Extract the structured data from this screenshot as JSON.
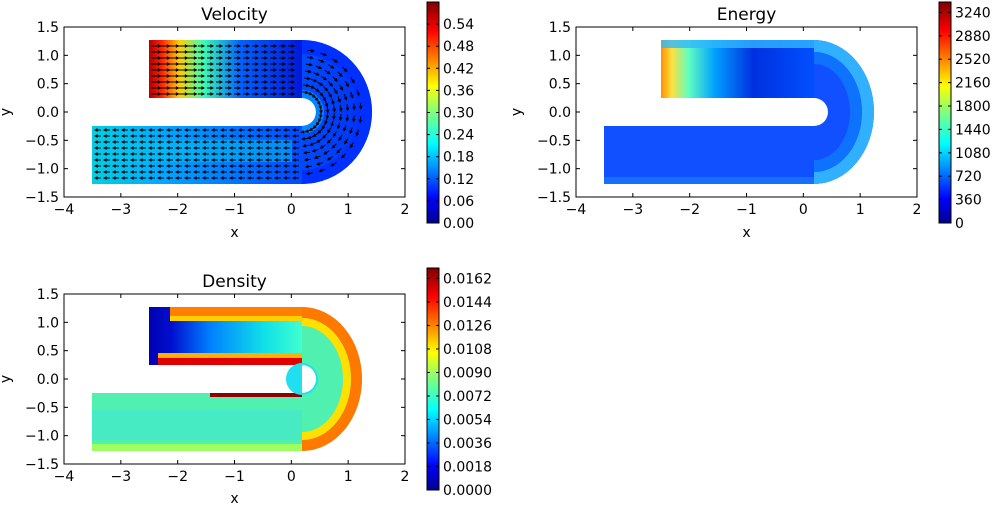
{
  "chart_data": [
    {
      "type": "heatmap",
      "title": "Velocity",
      "xlabel": "x",
      "ylabel": "y",
      "xlim": [
        -4,
        2
      ],
      "ylim": [
        -1.5,
        1.5
      ],
      "xticks": [
        "−4",
        "−3",
        "−2",
        "−1",
        "0",
        "1",
        "2"
      ],
      "yticks": [
        "1.5",
        "1.0",
        "0.5",
        "0.0",
        "−0.5",
        "−1.0",
        "−1.5"
      ],
      "colorbar": {
        "min": 0,
        "max": 0.6,
        "ticks": [
          "0.54",
          "0.48",
          "0.42",
          "0.36",
          "0.30",
          "0.24",
          "0.18",
          "0.12",
          "0.06",
          "0.00"
        ]
      },
      "quiver": true
    },
    {
      "type": "heatmap",
      "title": "Energy",
      "xlabel": "x",
      "ylabel": "y",
      "xlim": [
        -4,
        2
      ],
      "ylim": [
        -1.5,
        1.5
      ],
      "xticks": [
        "−4",
        "−3",
        "−2",
        "−1",
        "0",
        "1",
        "2"
      ],
      "yticks": [
        "1.5",
        "1.0",
        "0.5",
        "0.0",
        "−0.5",
        "−1.0",
        "−1.5"
      ],
      "colorbar": {
        "min": 0,
        "max": 3400,
        "ticks": [
          "3240",
          "2880",
          "2520",
          "2160",
          "1800",
          "1440",
          "1080",
          "720",
          "360",
          "0"
        ]
      },
      "quiver": false
    },
    {
      "type": "heatmap",
      "title": "Density",
      "xlabel": "x",
      "ylabel": "y",
      "xlim": [
        -4,
        2
      ],
      "ylim": [
        -1.5,
        1.5
      ],
      "xticks": [
        "−4",
        "−3",
        "−2",
        "−1",
        "0",
        "1",
        "2"
      ],
      "yticks": [
        "1.5",
        "1.0",
        "0.5",
        "0.0",
        "−0.5",
        "−1.0",
        "−1.5"
      ],
      "colorbar": {
        "min": 0,
        "max": 0.017,
        "ticks": [
          "0.0162",
          "0.0144",
          "0.0126",
          "0.0108",
          "0.0090",
          "0.0072",
          "0.0054",
          "0.0036",
          "0.0018",
          "0.0000"
        ]
      },
      "quiver": false
    }
  ],
  "colors": {
    "jet_low": "#00008f",
    "jet_blue": "#0000ff",
    "jet_mid": "#00ffff",
    "jet_green": "#7fff7f",
    "jet_yellow": "#ffff00",
    "jet_high": "#ff0000",
    "jet_max": "#7f0000"
  }
}
